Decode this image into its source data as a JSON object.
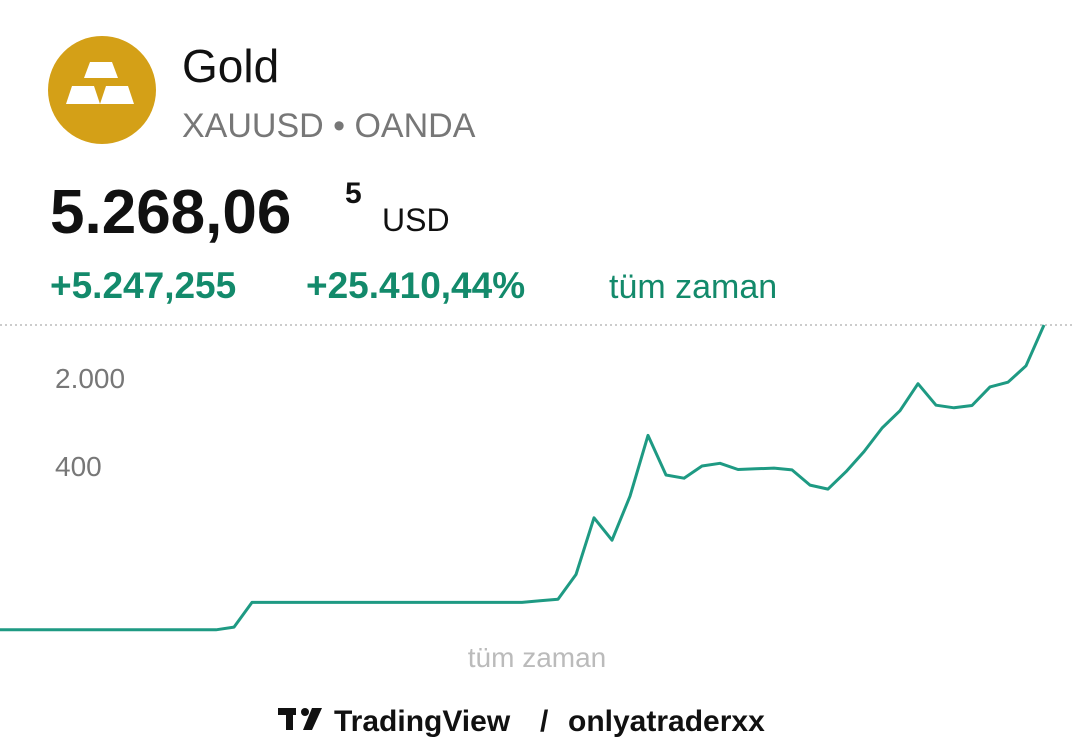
{
  "header": {
    "name": "Gold",
    "symbol": "XAUUSD • OANDA",
    "price": "5.268,06",
    "price_sup": "5",
    "currency": "USD",
    "change": "+5.247,255",
    "change_pct": "+25.410,44%",
    "period": "tüm zaman"
  },
  "chart_data": {
    "type": "line",
    "x_label": "tüm zaman",
    "log_scale": true,
    "grid": false,
    "ylim": [
      15,
      5300
    ],
    "yticks": [
      400,
      {
        "value": 2000,
        "label": "2.000"
      }
    ],
    "series": [
      {
        "name": "XAUUSD",
        "color": "#1e9a83",
        "values": [
          20,
          20,
          20,
          20,
          20,
          20,
          20,
          20,
          20,
          20,
          20,
          20,
          20,
          21,
          33,
          33,
          33,
          33,
          33,
          33,
          33,
          33,
          33,
          33,
          33,
          33,
          33,
          33,
          33,
          33,
          34,
          35,
          55,
          155,
          103,
          230,
          700,
          339,
          320,
          400,
          420,
          375,
          380,
          385,
          372,
          282,
          262,
          360,
          520,
          800,
          1100,
          1800,
          1215,
          1160,
          1210,
          1700,
          1850,
          2500,
          5268
        ]
      }
    ]
  },
  "footer": {
    "brand": "TradingView",
    "separator": "/",
    "user": "onlyatraderxx"
  }
}
